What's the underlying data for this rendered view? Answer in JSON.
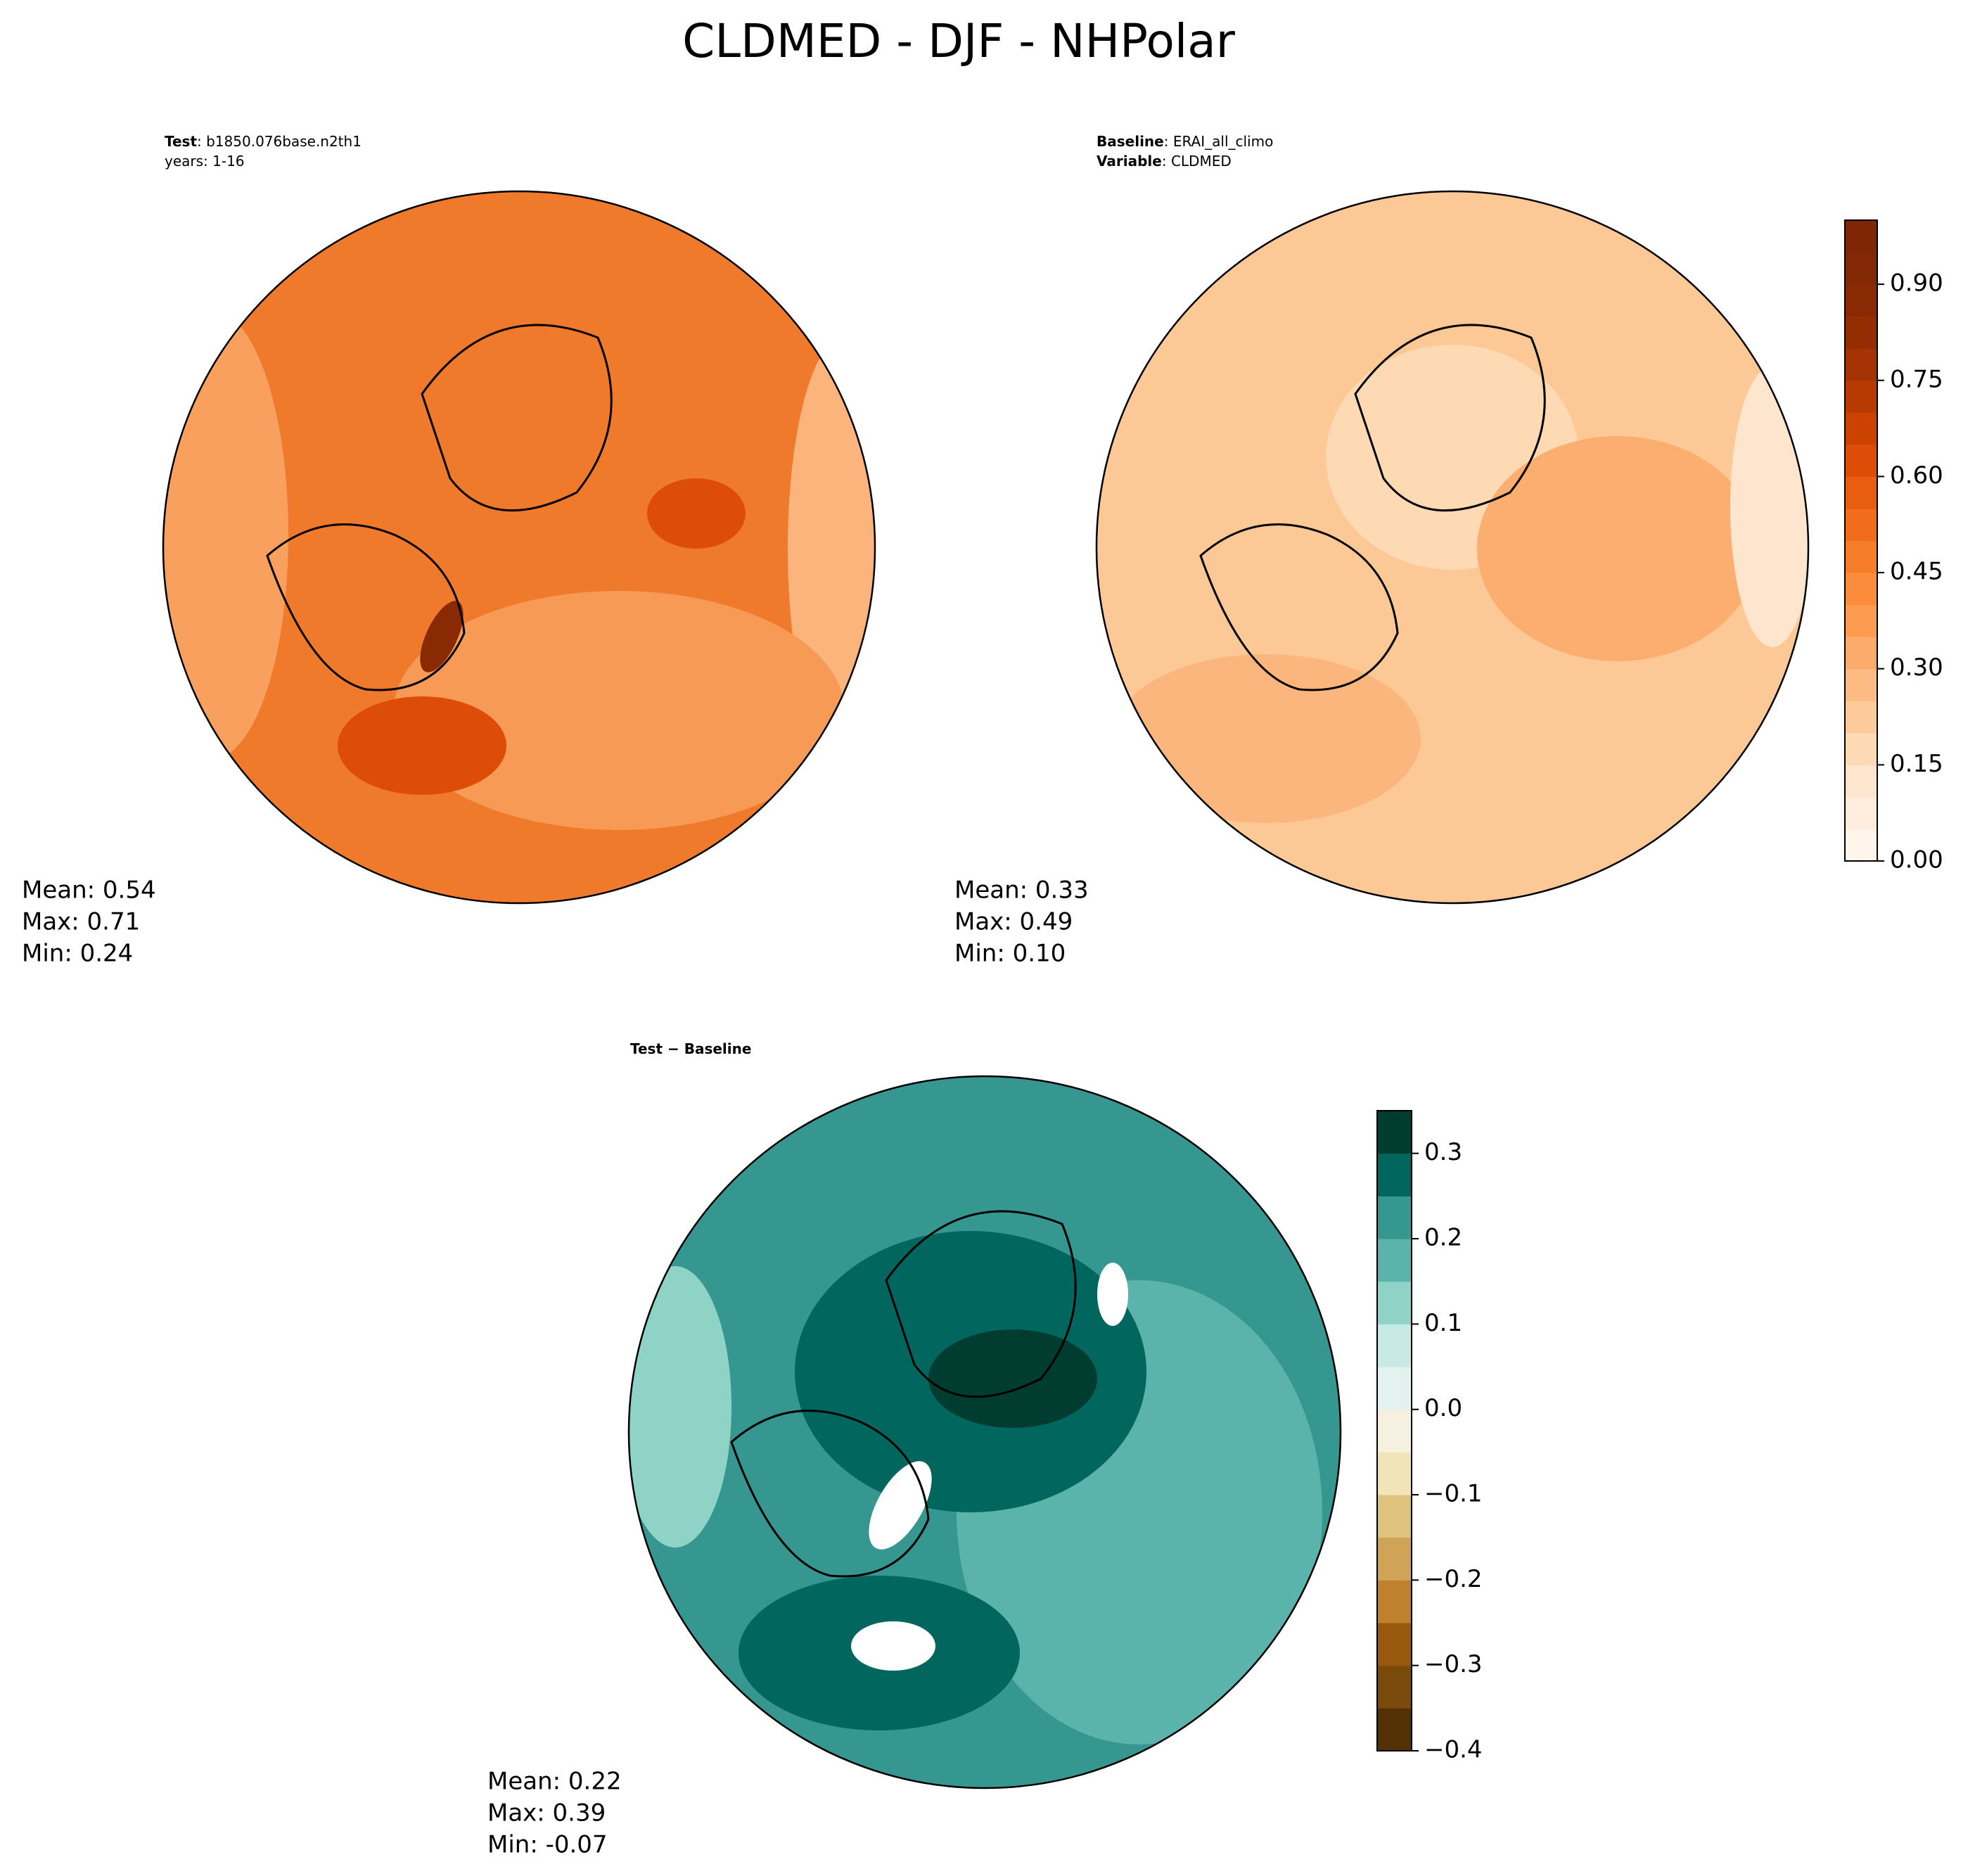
{
  "title": "CLDMED - DJF - NHPolar",
  "panels": [
    {
      "header": [
        {
          "bold": "Test",
          "text": ": b1850.076base.n2th1"
        },
        {
          "text": "years: 1-16"
        }
      ],
      "stats": [
        "Mean:  0.54",
        "Max:  0.71",
        "Min:  0.24"
      ]
    },
    {
      "header": [
        {
          "bold": "Baseline",
          "text": ": ERAI_all_climo"
        },
        {
          "bold": "Variable",
          "text": ": CLDMED"
        }
      ],
      "stats": [
        "Mean:  0.33",
        "Max:  0.49",
        "Min:  0.10"
      ]
    },
    {
      "header": [
        {
          "bold": "Test − Baseline"
        }
      ],
      "stats": [
        "Mean:  0.22",
        "Max:  0.39",
        "Min: -0.07"
      ]
    }
  ],
  "colorbars": [
    {
      "lim": [
        0,
        1.0
      ],
      "ticks": [
        {
          "value": 0,
          "label": "0.00"
        },
        {
          "value": 0.15,
          "label": "0.15"
        },
        {
          "value": 0.3,
          "label": "0.30"
        },
        {
          "value": 0.45,
          "label": "0.45"
        },
        {
          "value": 0.6,
          "label": "0.60"
        },
        {
          "value": 0.75,
          "label": "0.75"
        },
        {
          "value": 0.9,
          "label": "0.90"
        }
      ],
      "colors": [
        "#fff5eb",
        "#feeddc",
        "#fee6ce",
        "#fdd9b4",
        "#fdcb9a",
        "#fdbb84",
        "#fdab6b",
        "#fd9c51",
        "#fb8c3c",
        "#f67d2a",
        "#f16d1b",
        "#e85d0f",
        "#dd4d07",
        "#cc4301",
        "#b73a02",
        "#a53303",
        "#952d03",
        "#8a2a04",
        "#832804",
        "#7f2704"
      ]
    },
    {
      "lim": [
        -0.4,
        0.35
      ],
      "ticks": [
        {
          "value": -0.4,
          "label": "−0.4"
        },
        {
          "value": -0.3,
          "label": "−0.3"
        },
        {
          "value": -0.2,
          "label": "−0.2"
        },
        {
          "value": -0.1,
          "label": "−0.1"
        },
        {
          "value": 0,
          "label": "0.0"
        },
        0.1,
        0.2,
        0.3
      ],
      "colors": [
        "#543005",
        "#7a4a0c",
        "#98590f",
        "#bf812d",
        "#d0a456",
        "#dfc27d",
        "#f2e4b9",
        "#f5f0df",
        "#e4f2ef",
        "#c7eae5",
        "#8fd3c7",
        "#5ab4ac",
        "#35978f",
        "#01665e",
        "#003c30"
      ]
    }
  ]
}
